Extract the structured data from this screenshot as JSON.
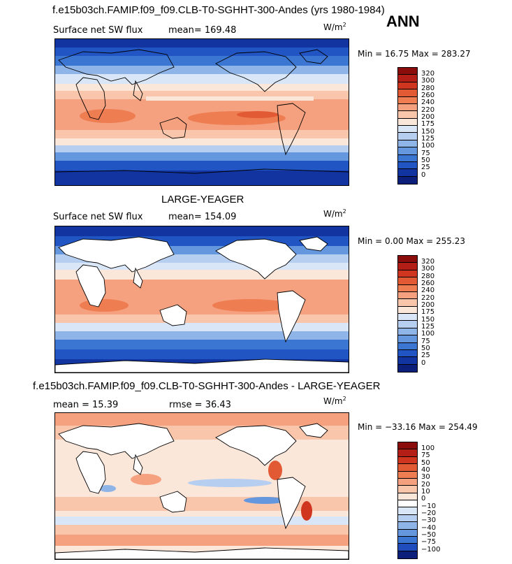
{
  "header": {
    "main_title": "f.e15b03ch.FAMIP.f09_f09.CLB-T0-SGHHT-300-Andes (yrs 1980-1984)",
    "season": "ANN"
  },
  "panels": [
    {
      "heading": "",
      "variable": "Surface net SW flux",
      "stat1": "mean= 169.48",
      "stat2": "",
      "units": "W/m",
      "units_exp": "2",
      "minmax": "Min =  16.75 Max = 283.27",
      "colorbar_labels": [
        "320",
        "300",
        "280",
        "260",
        "240",
        "220",
        "200",
        "175",
        "150",
        "125",
        "100",
        "75",
        "50",
        "25",
        "0"
      ]
    },
    {
      "heading": "LARGE-YEAGER",
      "variable": "Surface net SW flux",
      "stat1": "mean= 154.09",
      "stat2": "",
      "units": "W/m",
      "units_exp": "2",
      "minmax": "Min =   0.00 Max = 255.23",
      "colorbar_labels": [
        "320",
        "300",
        "280",
        "260",
        "240",
        "220",
        "200",
        "175",
        "150",
        "125",
        "100",
        "75",
        "50",
        "25",
        "0"
      ]
    },
    {
      "heading": "f.e15b03ch.FAMIP.f09_f09.CLB-T0-SGHHT-300-Andes - LARGE-YEAGER",
      "variable": "",
      "stat1": "mean =  15.39",
      "stat2": "rmse =  36.43",
      "units": "W/m",
      "units_exp": "2",
      "minmax": "Min = −33.16 Max = 254.49",
      "colorbar_labels": [
        "100",
        "75",
        "50",
        "40",
        "30",
        "20",
        "10",
        "0",
        "−10",
        "−20",
        "−30",
        "−40",
        "−50",
        "−75",
        "−100"
      ]
    }
  ],
  "colors": {
    "flux_scale": [
      "#8b0d0b",
      "#b31e17",
      "#d0361f",
      "#e25a34",
      "#ef7d52",
      "#f5a17f",
      "#f9c6ac",
      "#fbe6da",
      "#d8e6f7",
      "#b6cff0",
      "#8eb4e8",
      "#6497dd",
      "#3b76d3",
      "#2155c3",
      "#1234a0",
      "#0c1f7a"
    ],
    "diff_scale": [
      "#8b0d0b",
      "#b31e17",
      "#d0361f",
      "#e25a34",
      "#ef7d52",
      "#f5a17f",
      "#f9c6ac",
      "#fbe6da",
      "#ffffff",
      "#d8e6f7",
      "#b6cff0",
      "#8eb4e8",
      "#6497dd",
      "#3b76d3",
      "#1f4dbd",
      "#0c1f7a"
    ],
    "land_missing": "#ffffff"
  }
}
